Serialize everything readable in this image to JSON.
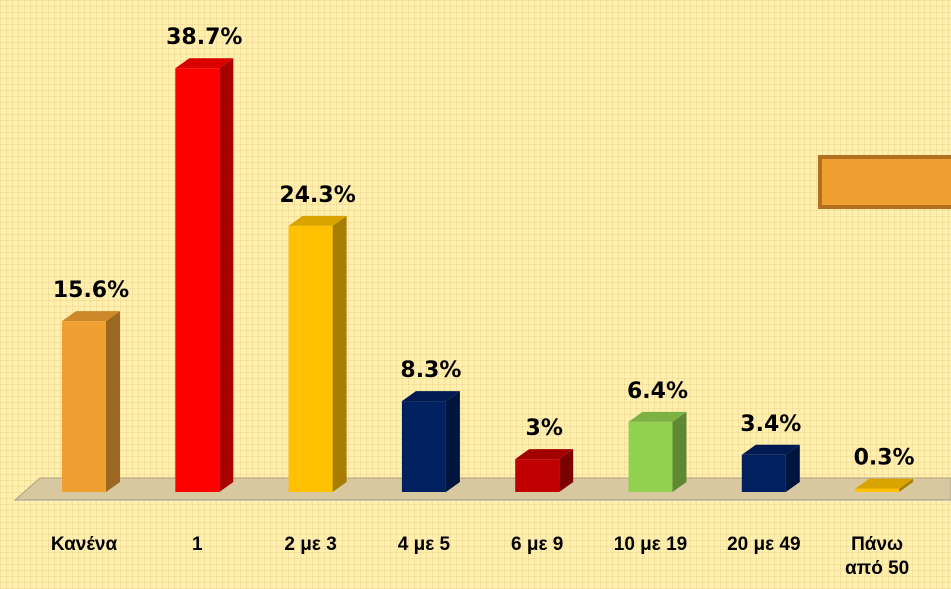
{
  "chart_data": {
    "type": "bar3d",
    "categories": [
      "Κανένα",
      "1",
      "2 με 3",
      "4 με 5",
      "6 με 9",
      "10 με 19",
      "20 με 49",
      "Πάνω από 50"
    ],
    "values": [
      15.6,
      38.7,
      24.3,
      8.3,
      3,
      6.4,
      3.4,
      0.3
    ],
    "value_labels": [
      "15.6%",
      "38.7%",
      "24.3%",
      "8.3%",
      "3%",
      "6.4%",
      "3.4%",
      "0.3%"
    ],
    "colors": [
      "#f0a030",
      "#ff0000",
      "#ffc000",
      "#002060",
      "#c00000",
      "#92d050",
      "#002060",
      "#ffc000"
    ]
  }
}
